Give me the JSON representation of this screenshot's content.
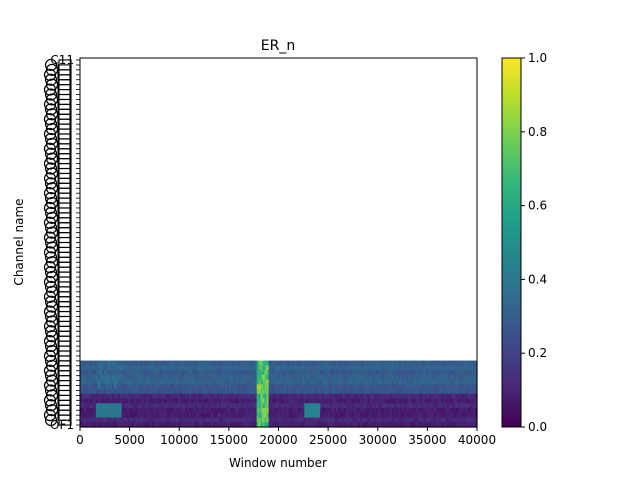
{
  "chart_data": {
    "type": "heatmap",
    "title": "ER_n",
    "xlabel": "Window number",
    "ylabel": "Channel name",
    "xlim": [
      0,
      40000
    ],
    "x_ticks": [
      0,
      5000,
      10000,
      15000,
      20000,
      25000,
      30000,
      35000,
      40000
    ],
    "y_tick_labels_top_visible": "C11",
    "y_tick_labels_bottom_visible": "OF1",
    "y_tick_labels_note": "About 75 channel labels are printed on the y axis; most overlap and are illegible except the topmost (C11) and bottom (OF1).",
    "data_rows_fraction_of_axis": 0.18,
    "features": [
      {
        "x_start": 17800,
        "x_end": 18800,
        "value": 0.85
      },
      {
        "x_start": 22500,
        "x_end": 24000,
        "value": 0.45
      },
      {
        "x_start": 1500,
        "x_end": 4000,
        "value": 0.4
      }
    ],
    "colorbar": {
      "colormap": "viridis",
      "vmin": 0.0,
      "vmax": 1.0,
      "ticks": [
        0.0,
        0.2,
        0.4,
        0.6,
        0.8,
        1.0
      ],
      "tick_labels": [
        "0.0",
        "0.2",
        "0.4",
        "0.6",
        "0.8",
        "1.0"
      ]
    },
    "grid": false
  },
  "colors": {
    "viridis": [
      "#440154",
      "#482878",
      "#3e4989",
      "#31688e",
      "#26828e",
      "#1f9e89",
      "#35b779",
      "#6ece58",
      "#b5de2b",
      "#fde725"
    ]
  }
}
